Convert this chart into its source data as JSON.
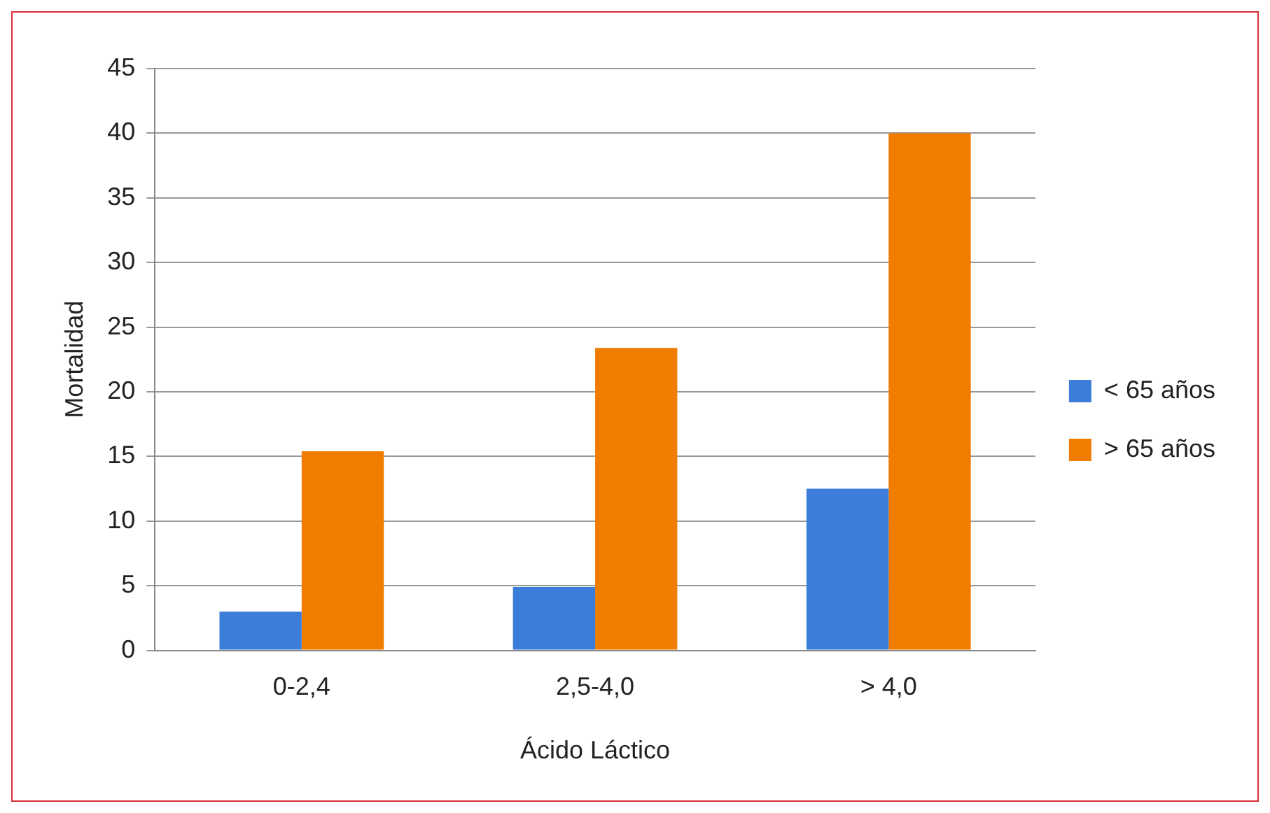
{
  "chart_data": {
    "type": "bar",
    "xlabel": "Ácido Láctico",
    "ylabel": "Mortalidad",
    "categories": [
      "0-2,4",
      "2,5-4,0",
      "> 4,0"
    ],
    "series": [
      {
        "name": "< 65 años",
        "color": "#3b7dd8",
        "values": [
          3,
          4.9,
          12.5
        ]
      },
      {
        "name": "> 65 años",
        "color": "#f07c00",
        "values": [
          15.4,
          23.4,
          40
        ]
      }
    ],
    "ylim": [
      0,
      45
    ],
    "yticks": [
      0,
      5,
      10,
      15,
      20,
      25,
      30,
      35,
      40,
      45
    ],
    "grid": "y",
    "legend": "right"
  }
}
